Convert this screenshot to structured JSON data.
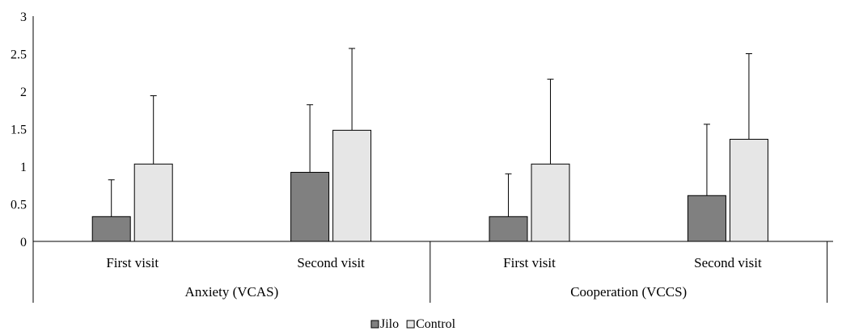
{
  "chart_data": {
    "type": "bar",
    "title": "",
    "xlabel": "",
    "ylabel": "",
    "ylim": [
      0,
      3
    ],
    "yticks": [
      "0",
      "0.5",
      "1",
      "1.5",
      "2",
      "2.5",
      "3"
    ],
    "grid": false,
    "legend_position": "bottom",
    "groups": [
      {
        "label": "Anxiety (VCAS)",
        "categories": [
          "First visit",
          "Second visit"
        ]
      },
      {
        "label": "Cooperation (VCCS)",
        "categories": [
          "First visit",
          "Second visit"
        ]
      }
    ],
    "categories": [
      "First visit",
      "Second visit",
      "First visit",
      "Second visit"
    ],
    "series": [
      {
        "name": "Jilo",
        "color": "#808080",
        "values": [
          0.33,
          0.92,
          0.33,
          0.61
        ],
        "error_plus": [
          0.49,
          0.9,
          0.57,
          0.95
        ]
      },
      {
        "name": "Control",
        "color": "#e6e6e6",
        "values": [
          1.03,
          1.48,
          1.03,
          1.36
        ],
        "error_plus": [
          0.91,
          1.09,
          1.13,
          1.14
        ]
      }
    ]
  }
}
